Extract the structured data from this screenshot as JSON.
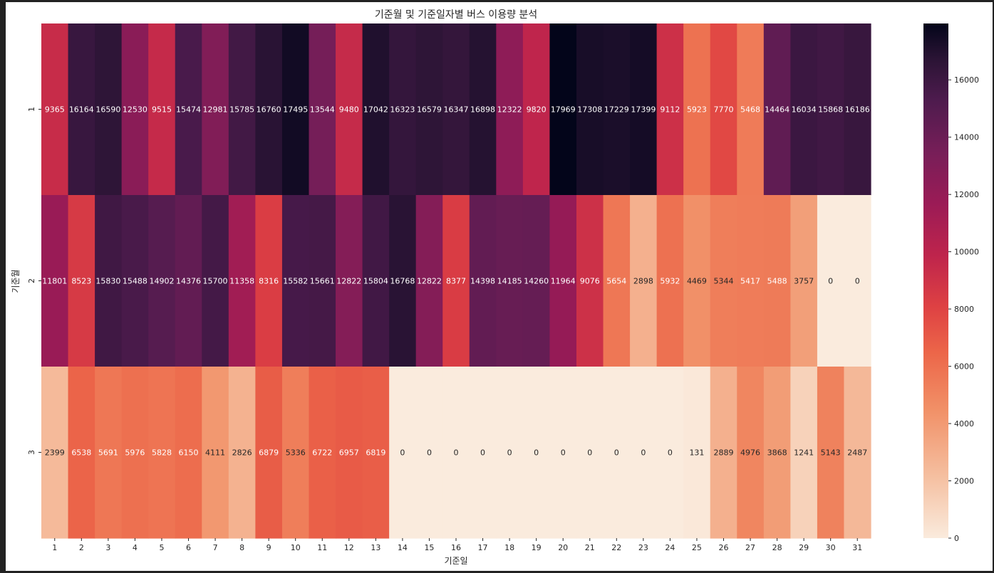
{
  "chart_data": {
    "type": "heatmap",
    "title": "기준월 및 기준일자별 버스 이용량 분석",
    "xlabel": "기준일",
    "ylabel": "기준월",
    "x": [
      "1",
      "2",
      "3",
      "4",
      "5",
      "6",
      "7",
      "8",
      "9",
      "10",
      "11",
      "12",
      "13",
      "14",
      "15",
      "16",
      "17",
      "18",
      "19",
      "20",
      "21",
      "22",
      "23",
      "24",
      "25",
      "26",
      "27",
      "28",
      "29",
      "30",
      "31"
    ],
    "y": [
      "1",
      "2",
      "3"
    ],
    "values": [
      [
        9365,
        16164,
        16590,
        12530,
        9515,
        15474,
        12981,
        15785,
        16760,
        17495,
        13544,
        9480,
        17042,
        16323,
        16579,
        16347,
        16898,
        12322,
        9820,
        17969,
        17308,
        17229,
        17399,
        9112,
        5923,
        7770,
        5468,
        14464,
        16034,
        15868,
        16186
      ],
      [
        11801,
        8523,
        15830,
        15488,
        14902,
        14376,
        15700,
        11358,
        8316,
        15582,
        15661,
        12822,
        15804,
        16768,
        12822,
        8377,
        14398,
        14185,
        14260,
        11964,
        9076,
        5654,
        2898,
        5932,
        4469,
        5344,
        5417,
        5488,
        3757,
        0,
        0
      ],
      [
        2399,
        6538,
        5691,
        5976,
        5828,
        6150,
        4111,
        2826,
        6879,
        5336,
        6722,
        6957,
        6819,
        0,
        0,
        0,
        0,
        0,
        0,
        0,
        0,
        0,
        0,
        0,
        131,
        2889,
        4976,
        3868,
        1241,
        5143,
        2487
      ]
    ],
    "colorbar": {
      "min": 0,
      "max": 17969,
      "ticks": [
        0,
        2000,
        4000,
        6000,
        8000,
        10000,
        12000,
        14000,
        16000
      ],
      "colormap": "rocket_r"
    }
  }
}
